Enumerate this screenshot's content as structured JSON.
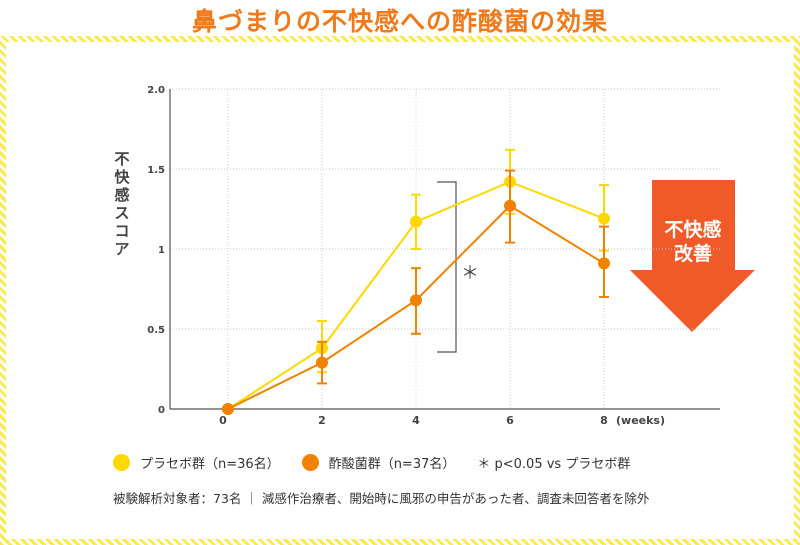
{
  "title": "鼻づまりの不快感への酢酸菌の効果",
  "colors": {
    "placebo": "#ffd800",
    "acetic": "#f08200",
    "arrow": "#f05a28",
    "title": "#f07a1a",
    "frame": "#ffe94a"
  },
  "arrow_label_line1": "不快感",
  "arrow_label_line2": "改善",
  "legend": {
    "placebo": "プラセボ群（n=36名）",
    "acetic": "酢酸菌群（n=37名）",
    "significance": "＊ p<0.05 vs プラセボ群"
  },
  "note": "被験解析対象者：73名 ｜ 減感作治療者、開始時に風邪の申告があった者、調査未回答者を除外",
  "chart_data": {
    "type": "line",
    "ylabel": "不快感スコア",
    "xlabel": "(weeks)",
    "x": [
      0,
      2,
      4,
      6,
      8
    ],
    "xticks": [
      "0",
      "2",
      "4",
      "6",
      "8"
    ],
    "yticks": [
      "0",
      "0.5",
      "1",
      "1.5",
      "2.0"
    ],
    "ylim": [
      0,
      2.0
    ],
    "grid": true,
    "legend_position": "bottom",
    "significance_marker": {
      "x": 4,
      "label": "＊"
    },
    "series": [
      {
        "name": "プラセボ群（n=36名）",
        "values": [
          0,
          0.38,
          1.17,
          1.42,
          1.19
        ],
        "err_low": [
          0,
          0.23,
          1.0,
          1.22,
          0.99
        ],
        "err_high": [
          0,
          0.55,
          1.34,
          1.62,
          1.4
        ]
      },
      {
        "name": "酢酸菌群（n=37名）",
        "values": [
          0,
          0.29,
          0.68,
          1.27,
          0.91
        ],
        "err_low": [
          0,
          0.16,
          0.47,
          1.04,
          0.7
        ],
        "err_high": [
          0,
          0.42,
          0.88,
          1.49,
          1.14
        ]
      }
    ]
  }
}
